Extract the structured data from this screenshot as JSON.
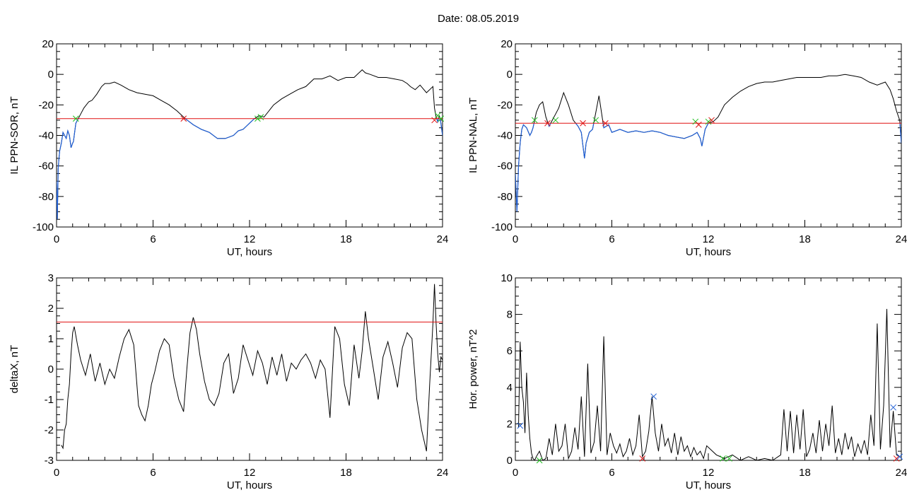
{
  "title": "Date:  08.05.2019",
  "colors": {
    "trace": "#000000",
    "below": "#1f5fd6",
    "threshold": "#e01010",
    "cross_red": "#e01010",
    "cross_green": "#1fbf1f",
    "cross_blue": "#1f5fd6"
  },
  "chart_data": [
    {
      "id": "p1",
      "type": "line",
      "ylabel": "IL PPN-SOR, nT",
      "xlabel": "UT, hours",
      "xlim": [
        0,
        24
      ],
      "ylim": [
        -100,
        20
      ],
      "xticks": [
        "0",
        "6",
        "12",
        "18",
        "24"
      ],
      "yticks": [
        "-100",
        "-80",
        "-60",
        "-40",
        "-20",
        "0",
        "20"
      ],
      "threshold": -29,
      "series": [
        {
          "x": [
            0,
            0.05,
            0.1,
            0.15,
            0.2,
            0.3,
            0.4,
            0.5,
            0.6,
            0.7,
            0.8,
            0.9,
            1.0,
            1.05,
            1.1,
            1.2,
            1.3,
            1.5,
            1.7,
            2.0,
            2.2,
            2.5,
            2.8,
            3.0,
            3.3,
            3.6,
            4.0,
            4.5,
            5.0,
            5.5,
            6.0,
            6.5,
            7.0,
            7.5,
            8.0,
            8.5,
            9.0,
            9.5,
            10.0,
            10.5,
            11.0,
            11.3,
            11.6,
            12.0,
            12.3,
            12.6,
            12.9,
            13.2,
            13.5,
            14.0,
            14.5,
            15.0,
            15.5,
            16.0,
            16.5,
            17.0,
            17.5,
            18.0,
            18.5,
            19.0,
            19.2,
            19.5,
            20.0,
            20.5,
            21.0,
            21.5,
            21.8,
            22.0,
            22.3,
            22.6,
            23.0,
            23.2,
            23.4,
            23.5,
            23.6,
            23.7,
            23.8,
            23.9,
            24.0
          ],
          "y": [
            -70,
            -95,
            -62,
            -55,
            -50,
            -45,
            -38,
            -40,
            -42,
            -37,
            -40,
            -48,
            -45,
            -44,
            -40,
            -32,
            -30,
            -26,
            -22,
            -18,
            -17,
            -13,
            -8,
            -6,
            -6,
            -5,
            -7,
            -10,
            -12,
            -13,
            -14,
            -17,
            -20,
            -24,
            -29,
            -33,
            -36,
            -38,
            -42,
            -42,
            -40,
            -37,
            -36,
            -32,
            -29,
            -27,
            -28,
            -24,
            -20,
            -16,
            -13,
            -10,
            -8,
            -3,
            -3,
            -1,
            -4,
            -2,
            -2,
            3,
            1,
            0,
            -2,
            -2,
            -3,
            -4,
            -6,
            -8,
            -10,
            -7,
            -12,
            -10,
            -8,
            -22,
            -28,
            -31,
            -27,
            -32,
            -40
          ]
        }
      ],
      "crossings": [
        {
          "x": 1.2,
          "y": -29,
          "color": "green"
        },
        {
          "x": 7.9,
          "y": -29,
          "color": "red"
        },
        {
          "x": 12.5,
          "y": -29,
          "color": "green"
        },
        {
          "x": 12.7,
          "y": -28,
          "color": "green"
        },
        {
          "x": 23.5,
          "y": -30,
          "color": "red"
        },
        {
          "x": 23.7,
          "y": -27,
          "color": "green"
        },
        {
          "x": 23.9,
          "y": -29,
          "color": "green"
        }
      ]
    },
    {
      "id": "p2",
      "type": "line",
      "ylabel": "IL PPN-NAL, nT",
      "xlabel": "UT, hours",
      "xlim": [
        0,
        24
      ],
      "ylim": [
        -100,
        20
      ],
      "xticks": [
        "0",
        "6",
        "12",
        "18",
        "24"
      ],
      "yticks": [
        "-100",
        "-80",
        "-60",
        "-40",
        "-20",
        "0",
        "20"
      ],
      "threshold": -32,
      "series": [
        {
          "x": [
            0,
            0.1,
            0.2,
            0.3,
            0.4,
            0.5,
            0.7,
            0.9,
            1.0,
            1.1,
            1.3,
            1.5,
            1.7,
            1.9,
            2.1,
            2.3,
            2.5,
            2.7,
            3.0,
            3.3,
            3.6,
            3.9,
            4.1,
            4.3,
            4.4,
            4.6,
            4.8,
            5.0,
            5.2,
            5.5,
            5.8,
            6.0,
            6.5,
            7.0,
            7.5,
            8.0,
            8.5,
            9.0,
            9.5,
            10.0,
            10.5,
            11.0,
            11.3,
            11.5,
            11.6,
            11.8,
            12.0,
            12.3,
            12.6,
            13.0,
            13.5,
            14.0,
            14.5,
            15.0,
            15.5,
            16.0,
            16.5,
            17.0,
            17.5,
            18.0,
            18.5,
            19.0,
            19.5,
            20.0,
            20.5,
            21.0,
            21.5,
            22.0,
            22.5,
            23.0,
            23.3,
            23.5,
            23.7,
            23.9,
            24.0
          ],
          "y": [
            -65,
            -90,
            -60,
            -45,
            -36,
            -33,
            -35,
            -40,
            -38,
            -35,
            -25,
            -20,
            -18,
            -28,
            -34,
            -30,
            -26,
            -22,
            -12,
            -20,
            -30,
            -34,
            -38,
            -55,
            -45,
            -38,
            -36,
            -25,
            -14,
            -35,
            -33,
            -38,
            -36,
            -38,
            -37,
            -38,
            -37,
            -38,
            -40,
            -41,
            -42,
            -40,
            -38,
            -42,
            -47,
            -36,
            -32,
            -31,
            -28,
            -20,
            -15,
            -11,
            -8,
            -6,
            -5,
            -5,
            -4,
            -3,
            -2,
            -2,
            -2,
            -2,
            -1,
            -1,
            0,
            -1,
            -2,
            -5,
            -7,
            -5,
            -10,
            -16,
            -24,
            -30,
            -45
          ]
        }
      ],
      "crossings": [
        {
          "x": 1.2,
          "y": -30,
          "color": "green"
        },
        {
          "x": 2.0,
          "y": -32,
          "color": "red"
        },
        {
          "x": 2.5,
          "y": -30,
          "color": "green"
        },
        {
          "x": 4.2,
          "y": -32,
          "color": "red"
        },
        {
          "x": 5.0,
          "y": -30,
          "color": "green"
        },
        {
          "x": 5.6,
          "y": -32,
          "color": "red"
        },
        {
          "x": 11.2,
          "y": -31,
          "color": "green"
        },
        {
          "x": 11.4,
          "y": -33,
          "color": "red"
        },
        {
          "x": 12.0,
          "y": -31,
          "color": "green"
        },
        {
          "x": 12.2,
          "y": -30,
          "color": "red"
        }
      ]
    },
    {
      "id": "p3",
      "type": "line",
      "ylabel": "deltaX, nT",
      "xlabel": "UT, hours",
      "xlim": [
        0,
        24
      ],
      "ylim": [
        -3,
        3
      ],
      "xticks": [
        "0",
        "6",
        "12",
        "18",
        "24"
      ],
      "yticks": [
        "-3",
        "-2",
        "-1",
        "0",
        "1",
        "2",
        "3"
      ],
      "threshold": 1.55,
      "series": [
        {
          "x": [
            0.3,
            0.4,
            0.5,
            0.6,
            0.7,
            0.8,
            0.9,
            1.0,
            1.1,
            1.3,
            1.5,
            1.8,
            2.1,
            2.4,
            2.7,
            3.0,
            3.3,
            3.6,
            3.9,
            4.2,
            4.5,
            4.8,
            5.1,
            5.3,
            5.5,
            5.7,
            5.9,
            6.1,
            6.4,
            6.7,
            7.0,
            7.3,
            7.6,
            7.9,
            8.1,
            8.3,
            8.5,
            8.7,
            8.9,
            9.2,
            9.5,
            9.8,
            10.1,
            10.4,
            10.7,
            11.0,
            11.3,
            11.6,
            11.9,
            12.2,
            12.5,
            12.8,
            13.1,
            13.4,
            13.7,
            14.0,
            14.3,
            14.6,
            14.9,
            15.2,
            15.5,
            15.8,
            16.1,
            16.4,
            16.7,
            17.0,
            17.3,
            17.6,
            17.9,
            18.2,
            18.5,
            18.8,
            19.0,
            19.2,
            19.4,
            19.7,
            20.0,
            20.3,
            20.6,
            20.9,
            21.2,
            21.5,
            21.8,
            22.1,
            22.4,
            22.7,
            23.0,
            23.2,
            23.4,
            23.5,
            23.6,
            23.7,
            23.8,
            23.9,
            24.0
          ],
          "y": [
            -2.5,
            -2.6,
            -2.0,
            -1.8,
            -1.0,
            -0.5,
            0.5,
            1.2,
            1.4,
            0.8,
            0.3,
            -0.2,
            0.5,
            -0.4,
            0.2,
            -0.5,
            0.0,
            -0.3,
            0.4,
            1.0,
            1.3,
            0.8,
            -1.2,
            -1.5,
            -1.7,
            -1.2,
            -0.5,
            -0.1,
            0.6,
            1.0,
            0.8,
            -0.3,
            -1.0,
            -1.4,
            0.0,
            1.2,
            1.7,
            1.3,
            0.5,
            -0.4,
            -1.0,
            -1.2,
            -0.8,
            0.2,
            0.5,
            -0.8,
            -0.3,
            0.8,
            0.3,
            -0.2,
            0.6,
            0.2,
            -0.5,
            0.4,
            -0.2,
            0.5,
            -0.4,
            0.2,
            0.0,
            0.3,
            0.5,
            0.2,
            -0.3,
            0.3,
            0.0,
            -1.6,
            1.4,
            1.0,
            -0.5,
            -1.2,
            0.8,
            -0.3,
            0.6,
            1.9,
            1.0,
            0.0,
            -1.0,
            0.4,
            0.9,
            0.2,
            -0.6,
            0.7,
            1.2,
            1.0,
            -1.0,
            -2.0,
            -2.7,
            -0.5,
            1.5,
            2.8,
            1.5,
            0.5,
            -0.1,
            0.4,
            0.3
          ]
        }
      ]
    },
    {
      "id": "p4",
      "type": "line",
      "ylabel": "Hor. power, nT^2",
      "xlabel": "UT, hours",
      "xlim": [
        0,
        24
      ],
      "ylim": [
        0,
        10
      ],
      "xticks": [
        "0",
        "6",
        "12",
        "18",
        "24"
      ],
      "yticks": [
        "0",
        "2",
        "4",
        "6",
        "8",
        "10"
      ],
      "series": [
        {
          "x": [
            0.2,
            0.3,
            0.4,
            0.5,
            0.6,
            0.7,
            0.8,
            0.9,
            1.0,
            1.1,
            1.2,
            1.3,
            1.5,
            1.7,
            1.9,
            2.1,
            2.3,
            2.5,
            2.7,
            2.9,
            3.1,
            3.3,
            3.5,
            3.7,
            3.9,
            4.1,
            4.3,
            4.5,
            4.7,
            4.9,
            5.1,
            5.3,
            5.5,
            5.7,
            5.9,
            6.1,
            6.3,
            6.5,
            6.7,
            6.9,
            7.1,
            7.3,
            7.5,
            7.7,
            7.9,
            8.1,
            8.3,
            8.5,
            8.7,
            8.9,
            9.1,
            9.3,
            9.5,
            9.7,
            9.9,
            10.1,
            10.3,
            10.5,
            10.7,
            10.9,
            11.1,
            11.3,
            11.5,
            11.7,
            11.9,
            12.5,
            13.0,
            13.5,
            14.0,
            14.5,
            15.0,
            15.5,
            16.0,
            16.5,
            16.7,
            16.9,
            17.1,
            17.3,
            17.5,
            17.7,
            17.9,
            18.1,
            18.3,
            18.5,
            18.7,
            18.9,
            19.1,
            19.3,
            19.5,
            19.7,
            19.9,
            20.1,
            20.3,
            20.5,
            20.7,
            20.9,
            21.1,
            21.3,
            21.5,
            21.7,
            21.9,
            22.1,
            22.3,
            22.5,
            22.7,
            22.9,
            23.1,
            23.3,
            23.5,
            23.7,
            23.9
          ],
          "y": [
            1.8,
            6.5,
            4.0,
            3.2,
            1.5,
            4.8,
            2.5,
            1.2,
            0.4,
            0.1,
            0.0,
            0.2,
            0.5,
            0.0,
            0.1,
            1.2,
            0.3,
            2.0,
            0.5,
            0.8,
            2.0,
            0.1,
            0.5,
            1.8,
            0.6,
            3.5,
            0.2,
            5.3,
            0.4,
            1.0,
            3.0,
            0.5,
            6.8,
            0.3,
            1.5,
            0.8,
            0.4,
            0.9,
            0.2,
            0.5,
            1.2,
            0.3,
            0.8,
            2.5,
            0.2,
            0.5,
            1.6,
            3.5,
            1.5,
            0.5,
            2.0,
            0.8,
            1.2,
            0.4,
            1.5,
            0.3,
            1.3,
            0.5,
            0.8,
            0.2,
            0.7,
            0.3,
            0.5,
            0.1,
            0.8,
            0.3,
            0.1,
            0.3,
            0.0,
            0.2,
            0.0,
            0.1,
            0.0,
            0.3,
            2.8,
            0.5,
            2.7,
            0.4,
            2.5,
            0.6,
            2.8,
            0.2,
            0.6,
            1.5,
            0.4,
            2.2,
            0.5,
            2.0,
            0.8,
            3.0,
            0.4,
            1.2,
            0.3,
            1.5,
            0.6,
            1.3,
            0.2,
            0.9,
            0.4,
            1.1,
            0.3,
            2.5,
            0.8,
            7.5,
            0.6,
            3.0,
            8.3,
            0.7,
            2.7,
            0.3,
            0.2
          ]
        }
      ],
      "crossings": [
        {
          "x": 0.3,
          "y": 1.9,
          "color": "blue"
        },
        {
          "x": 1.5,
          "y": 0.0,
          "color": "green"
        },
        {
          "x": 7.9,
          "y": 0.1,
          "color": "red"
        },
        {
          "x": 8.6,
          "y": 3.5,
          "color": "blue"
        },
        {
          "x": 12.9,
          "y": 0.1,
          "color": "green"
        },
        {
          "x": 13.3,
          "y": 0.1,
          "color": "green"
        },
        {
          "x": 23.5,
          "y": 2.9,
          "color": "blue"
        },
        {
          "x": 23.7,
          "y": 0.1,
          "color": "red"
        },
        {
          "x": 23.9,
          "y": 0.2,
          "color": "blue"
        }
      ]
    }
  ]
}
